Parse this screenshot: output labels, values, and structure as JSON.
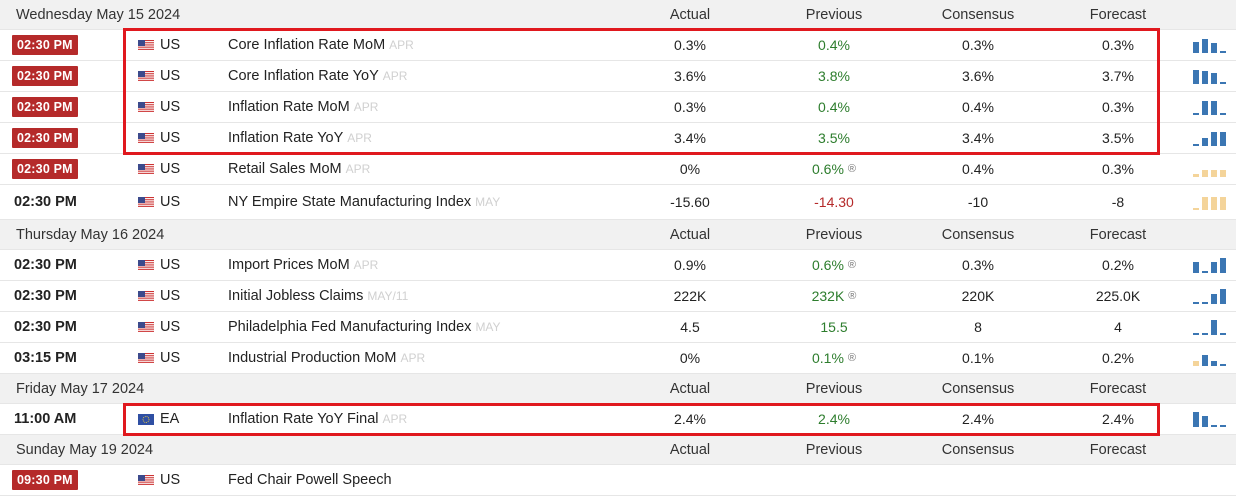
{
  "columns": {
    "actual": "Actual",
    "previous": "Previous",
    "consensus": "Consensus",
    "forecast": "Forecast"
  },
  "colors": {
    "badge": "#b52a2a",
    "highlight": "#e0181e",
    "positive": "#2d7d2d",
    "negative": "#b52a2a",
    "spark_blue": "#3b76b3",
    "spark_gold": "#f4d49a"
  },
  "groups": [
    {
      "date": "Wednesday May 15 2024",
      "rows": [
        {
          "time": "02:30 PM",
          "badge": true,
          "flag": "us-flag-icon",
          "country": "US",
          "event": "Core Inflation Rate MoM",
          "ref": "APR",
          "actual": "0.3%",
          "previous": "0.4%",
          "previous_color": "green",
          "revised": false,
          "consensus": "0.3%",
          "forecast": "0.3%",
          "spark": {
            "color": "blue",
            "values": [
              0.7,
              0.9,
              0.6,
              0.15
            ]
          }
        },
        {
          "time": "02:30 PM",
          "badge": true,
          "flag": "us-flag-icon",
          "country": "US",
          "event": "Core Inflation Rate YoY",
          "ref": "APR",
          "actual": "3.6%",
          "previous": "3.8%",
          "previous_color": "green",
          "revised": false,
          "consensus": "3.6%",
          "forecast": "3.7%",
          "spark": {
            "color": "blue",
            "values": [
              0.9,
              0.8,
              0.7,
              0.15
            ]
          }
        },
        {
          "time": "02:30 PM",
          "badge": true,
          "flag": "us-flag-icon",
          "country": "US",
          "event": "Inflation Rate MoM",
          "ref": "APR",
          "actual": "0.3%",
          "previous": "0.4%",
          "previous_color": "green",
          "revised": false,
          "consensus": "0.4%",
          "forecast": "0.3%",
          "spark": {
            "color": "blue",
            "values": [
              0.15,
              0.9,
              0.9,
              0.15
            ]
          }
        },
        {
          "time": "02:30 PM",
          "badge": true,
          "flag": "us-flag-icon",
          "country": "US",
          "event": "Inflation Rate YoY",
          "ref": "APR",
          "actual": "3.4%",
          "previous": "3.5%",
          "previous_color": "green",
          "revised": false,
          "consensus": "3.4%",
          "forecast": "3.5%",
          "spark": {
            "color": "blue",
            "values": [
              0.15,
              0.5,
              0.9,
              0.9
            ]
          }
        },
        {
          "time": "02:30 PM",
          "badge": true,
          "flag": "us-flag-icon",
          "country": "US",
          "event": "Retail Sales MoM",
          "ref": "APR",
          "actual": "0%",
          "previous": "0.6%",
          "previous_color": "green",
          "revised": true,
          "consensus": "0.4%",
          "forecast": "0.3%",
          "spark": {
            "color": "gold",
            "values": [
              0.2,
              0.45,
              0.45,
              0.45
            ]
          }
        },
        {
          "time": "02:30 PM",
          "badge": false,
          "flag": "us-flag-icon",
          "country": "US",
          "event": "NY Empire State Manufacturing Index",
          "ref": "MAY",
          "actual": "-15.60",
          "previous": "-14.30",
          "previous_color": "red",
          "revised": false,
          "consensus": "-10",
          "forecast": "-8",
          "spark": {
            "color": "gold",
            "values": [
              0.12,
              0.8,
              0.8,
              0.8
            ]
          }
        }
      ]
    },
    {
      "date": "Thursday May 16 2024",
      "rows": [
        {
          "time": "02:30 PM",
          "badge": false,
          "flag": "us-flag-icon",
          "country": "US",
          "event": "Import Prices MoM",
          "ref": "APR",
          "actual": "0.9%",
          "previous": "0.6%",
          "previous_color": "green",
          "revised": true,
          "consensus": "0.3%",
          "forecast": "0.2%",
          "spark": {
            "color": "blue",
            "values": [
              0.7,
              0.15,
              0.7,
              0.95
            ]
          }
        },
        {
          "time": "02:30 PM",
          "badge": false,
          "flag": "us-flag-icon",
          "country": "US",
          "event": "Initial Jobless Claims",
          "ref": "MAY/11",
          "actual": "222K",
          "previous": "232K",
          "previous_color": "green",
          "revised": true,
          "consensus": "220K",
          "forecast": "225.0K",
          "spark": {
            "color": "blue",
            "values": [
              0.12,
              0.12,
              0.6,
              0.95
            ]
          }
        },
        {
          "time": "02:30 PM",
          "badge": false,
          "flag": "us-flag-icon",
          "country": "US",
          "event": "Philadelphia Fed Manufacturing Index",
          "ref": "MAY",
          "actual": "4.5",
          "previous": "15.5",
          "previous_color": "green",
          "revised": false,
          "consensus": "8",
          "forecast": "4",
          "spark": {
            "color": "blue",
            "values": [
              0.12,
              0.12,
              0.95,
              0.12
            ]
          }
        },
        {
          "time": "03:15 PM",
          "badge": false,
          "flag": "us-flag-icon",
          "country": "US",
          "event": "Industrial Production MoM",
          "ref": "APR",
          "actual": "0%",
          "previous": "0.1%",
          "previous_color": "green",
          "revised": true,
          "consensus": "0.1%",
          "forecast": "0.2%",
          "spark": {
            "color": "mixed",
            "values": [
              0.3,
              0.7,
              0.3,
              0.15
            ]
          }
        }
      ]
    },
    {
      "date": "Friday May 17 2024",
      "rows": [
        {
          "time": "11:00 AM",
          "badge": false,
          "flag": "eu-flag-icon",
          "country": "EA",
          "event": "Inflation Rate YoY Final",
          "ref": "APR",
          "actual": "2.4%",
          "previous": "2.4%",
          "previous_color": "green",
          "revised": false,
          "consensus": "2.4%",
          "forecast": "2.4%",
          "spark": {
            "color": "blue",
            "values": [
              0.95,
              0.7,
              0.15,
              0.15
            ]
          }
        }
      ]
    },
    {
      "date": "Sunday May 19 2024",
      "rows": [
        {
          "time": "09:30 PM",
          "badge": true,
          "flag": "us-flag-icon",
          "country": "US",
          "event": "Fed Chair Powell Speech",
          "ref": "",
          "actual": "",
          "previous": "",
          "previous_color": "green",
          "revised": false,
          "consensus": "",
          "forecast": "",
          "spark": null
        }
      ]
    }
  ]
}
